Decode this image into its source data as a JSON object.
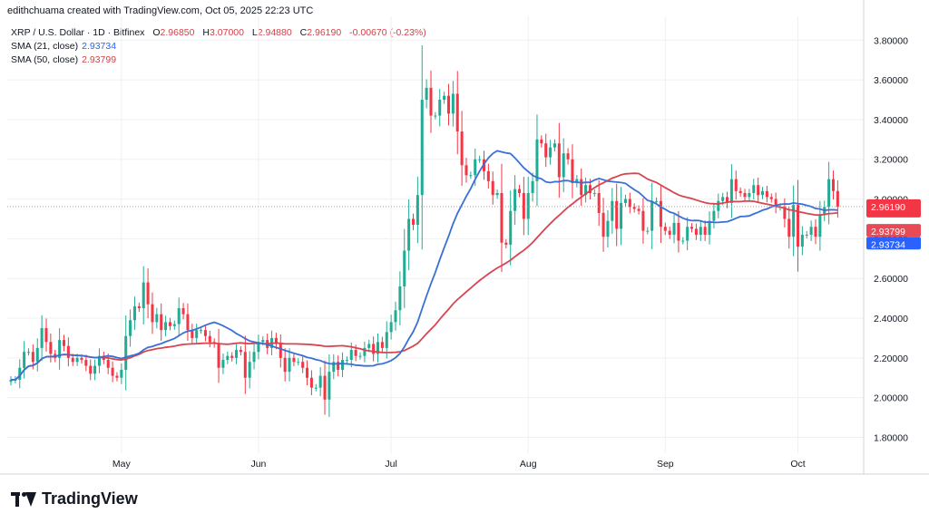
{
  "header": {
    "created_by": "edithchuama created with TradingView.com, Oct 05, 2025 22:23 UTC"
  },
  "legend": {
    "symbol": "XRP / U.S. Dollar · 1D · Bitfinex",
    "open_label": "O",
    "open": "2.96850",
    "high_label": "H",
    "high": "3.07000",
    "low_label": "L",
    "low": "2.94880",
    "close_label": "C",
    "close": "2.96190",
    "change": "-0.00670 (-0.23%)",
    "sma21_label": "SMA (21, close)",
    "sma21_value": "2.93734",
    "sma50_label": "SMA (50, close)",
    "sma50_value": "2.93799"
  },
  "brand": {
    "name": "TradingView"
  },
  "colors": {
    "up": "#22ab94",
    "down": "#f23645",
    "sma21": "#3a6fd6",
    "sma50": "#d64550",
    "grid": "#eef0f3",
    "text": "#131722"
  },
  "chart_data": {
    "type": "candlestick",
    "title": "",
    "xlabel": "",
    "ylabel": "",
    "ylim": [
      1.72,
      3.92
    ],
    "y_ticks": [
      "1.80000",
      "2.00000",
      "2.20000",
      "2.40000",
      "2.60000",
      "2.80000",
      "3.00000",
      "3.20000",
      "3.40000",
      "3.60000",
      "3.80000"
    ],
    "x_ticks": [
      {
        "label": "May",
        "date": "2025-05-01"
      },
      {
        "label": "Jun",
        "date": "2025-06-01"
      },
      {
        "label": "Jul",
        "date": "2025-07-01"
      },
      {
        "label": "Aug",
        "date": "2025-08-01"
      },
      {
        "label": "Sep",
        "date": "2025-09-01"
      },
      {
        "label": "Oct",
        "date": "2025-10-01"
      }
    ],
    "start_date": "2025-04-06",
    "last_date": "2025-10-05",
    "closes": [
      2.09,
      2.09,
      2.15,
      2.23,
      2.23,
      2.18,
      2.25,
      2.35,
      2.28,
      2.22,
      2.2,
      2.29,
      2.26,
      2.2,
      2.18,
      2.2,
      2.19,
      2.16,
      2.12,
      2.16,
      2.21,
      2.19,
      2.15,
      2.11,
      2.1,
      2.14,
      2.31,
      2.39,
      2.46,
      2.45,
      2.58,
      2.47,
      2.38,
      2.42,
      2.34,
      2.38,
      2.36,
      2.37,
      2.45,
      2.42,
      2.34,
      2.3,
      2.34,
      2.34,
      2.31,
      2.28,
      2.27,
      2.15,
      2.19,
      2.21,
      2.2,
      2.24,
      2.23,
      2.1,
      2.18,
      2.23,
      2.28,
      2.29,
      2.25,
      2.3,
      2.27,
      2.2,
      2.13,
      2.2,
      2.18,
      2.18,
      2.15,
      2.1,
      2.05,
      2.05,
      2.11,
      1.99,
      2.13,
      2.18,
      2.14,
      2.19,
      2.19,
      2.24,
      2.21,
      2.21,
      2.25,
      2.27,
      2.22,
      2.28,
      2.25,
      2.33,
      2.38,
      2.44,
      2.56,
      2.74,
      2.9,
      2.87,
      3.02,
      3.5,
      3.56,
      3.42,
      3.42,
      3.5,
      3.52,
      3.43,
      3.53,
      3.34,
      3.17,
      3.12,
      3.12,
      3.2,
      3.2,
      3.14,
      3.09,
      3.02,
      3.03,
      2.78,
      2.77,
      2.94,
      3.05,
      3.03,
      2.9,
      3.03,
      3.09,
      3.3,
      3.28,
      3.21,
      3.26,
      3.28,
      3.11,
      3.23,
      3.2,
      3.08,
      3.1,
      3.02,
      3.07,
      3.03,
      3.03,
      2.93,
      2.81,
      2.89,
      2.99,
      2.85,
      2.98,
      3.0,
      2.96,
      2.95,
      2.94,
      2.84,
      2.84,
      2.99,
      2.99,
      2.86,
      2.84,
      2.82,
      2.88,
      2.79,
      2.79,
      2.86,
      2.85,
      2.82,
      2.86,
      2.82,
      2.89,
      2.94,
      2.99,
      3.01,
      2.98,
      3.1,
      3.04,
      3.03,
      3.01,
      3.03,
      3.07,
      3.02,
      3.04,
      3.01,
      3.0,
      2.96,
      2.96,
      2.9,
      2.81,
      2.97,
      2.76,
      2.82,
      2.82,
      2.86,
      2.81,
      2.92,
      2.96,
      3.1,
      3.04,
      2.96
    ]
  }
}
